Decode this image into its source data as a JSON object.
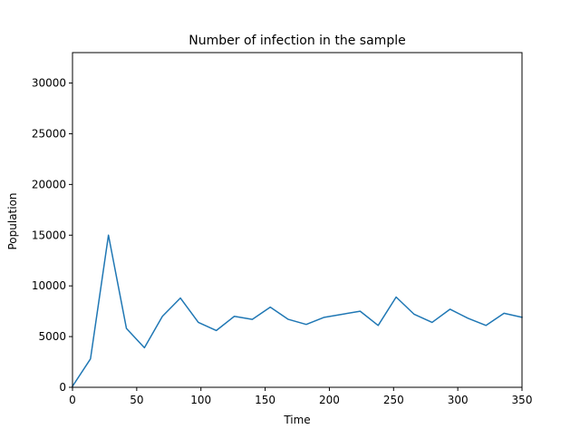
{
  "chart_data": {
    "type": "line",
    "title": "Number of infection in the sample",
    "xlabel": "Time",
    "ylabel": "Population",
    "xlim": [
      0,
      350
    ],
    "ylim": [
      0,
      33000
    ],
    "xticks": [
      0,
      50,
      100,
      150,
      200,
      250,
      300,
      350
    ],
    "yticks": [
      0,
      5000,
      10000,
      15000,
      20000,
      25000,
      30000
    ],
    "grid": false,
    "series": [
      {
        "x": [
          0,
          14,
          28,
          42,
          56,
          70,
          84,
          98,
          112,
          126,
          140,
          154,
          168,
          182,
          196,
          210,
          224,
          238,
          252,
          266,
          280,
          294,
          308,
          322,
          336,
          350
        ],
        "values": [
          100,
          2800,
          15000,
          5800,
          3900,
          7000,
          8800,
          6400,
          5600,
          7000,
          6700,
          7900,
          6700,
          6200,
          6900,
          7200,
          7500,
          6100,
          8900,
          7200,
          6400,
          7700,
          6800,
          6100,
          7300,
          6900
        ],
        "color": "#1f77b4"
      }
    ]
  }
}
